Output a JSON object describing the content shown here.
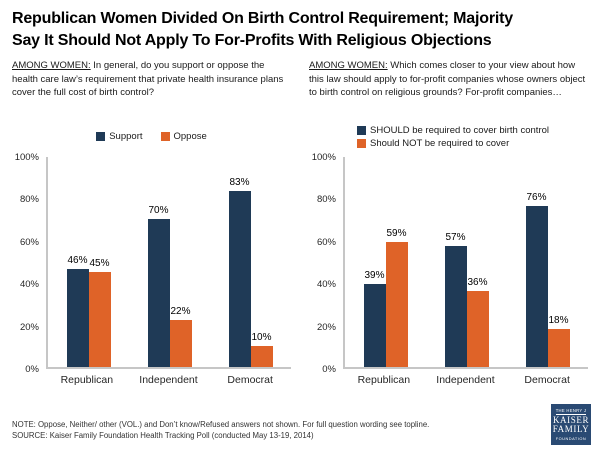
{
  "title": {
    "line1": "Republican Women Divided On Birth Control Requirement; Majority",
    "line2": "Say It Should Not Apply To For-Profits With Religious Objections"
  },
  "colors": {
    "navy": "#1F3A56",
    "orange": "#DF6328",
    "axis_line": "#C6C6C6",
    "logo_bg": "#2A4A73"
  },
  "chart_data": [
    {
      "type": "bar",
      "question_prefix": "AMONG WOMEN:",
      "question_rest": " In general, do you support or oppose the health care law’s requirement that private health insurance plans cover the full cost of birth control?",
      "categories": [
        "Republican",
        "Independent",
        "Democrat"
      ],
      "series": [
        {
          "name": "Support",
          "color": "#1F3A56",
          "values": [
            46,
            70,
            83
          ]
        },
        {
          "name": "Oppose",
          "color": "#DF6328",
          "values": [
            45,
            22,
            10
          ]
        }
      ],
      "ylim": [
        0,
        100
      ],
      "ytick_step": 20,
      "ytick_suffix": "%",
      "value_label_suffix": "%",
      "grid": false,
      "legend_position": "top-center"
    },
    {
      "type": "bar",
      "question_prefix": "AMONG WOMEN:",
      "question_rest": " Which comes closer to your view about how this law should apply to for-profit companies whose owners object to birth control on religious grounds? For-profit companies…",
      "categories": [
        "Republican",
        "Independent",
        "Democrat"
      ],
      "series": [
        {
          "name": "SHOULD be required to cover birth control",
          "color": "#1F3A56",
          "values": [
            39,
            57,
            76
          ]
        },
        {
          "name": "Should NOT be required to cover",
          "color": "#DF6328",
          "values": [
            59,
            36,
            18
          ]
        }
      ],
      "ylim": [
        0,
        100
      ],
      "ytick_step": 20,
      "ytick_suffix": "%",
      "value_label_suffix": "%",
      "grid": false,
      "legend_position": "top-left-stacked"
    }
  ],
  "footer": {
    "note": "NOTE: Oppose, Neither/ other (VOL.) and Don’t know/Refused answers not shown. For full question wording see topline.",
    "source": "SOURCE: Kaiser Family Foundation Health Tracking Poll (conducted May 13-19, 2014)"
  },
  "logo": {
    "line1": "THE HENRY J",
    "line2": "KAISER",
    "line3": "FAMILY",
    "line4": "FOUNDATION"
  }
}
